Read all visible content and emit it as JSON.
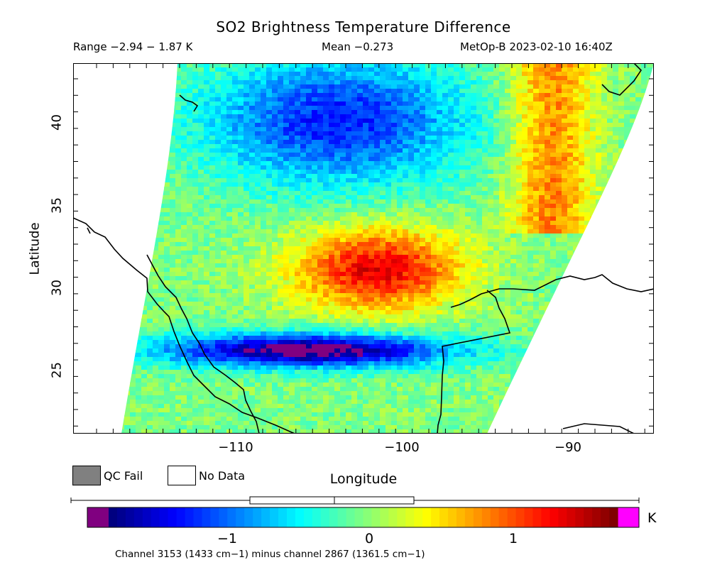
{
  "header": {
    "title": "SO2 Brightness Temperature Difference",
    "range": "Range −2.94 − 1.87 K",
    "mean": "Mean −0.273",
    "satellite": "MetOp-B 2023-02-10 16:40Z"
  },
  "axes": {
    "xlabel": "Longitude",
    "ylabel": "Latitude",
    "x_ticks": [
      "−110",
      "−100",
      "−90"
    ],
    "y_ticks": [
      "40",
      "35",
      "30",
      "25"
    ],
    "x_range": [
      -119.5,
      -84.5
    ],
    "y_range": [
      21,
      43.5
    ]
  },
  "legend": {
    "qc_fail": "QC Fail",
    "no_data": "No Data",
    "qc_color": "#808080"
  },
  "colorbar": {
    "ticks": [
      "−1",
      "0",
      "1"
    ],
    "unit": "K",
    "range": [
      -2.94,
      1.87
    ],
    "under_color": "#800080",
    "over_color": "#ff00ff"
  },
  "footnote": "Channel 3153 (1433 cm−1) minus channel 2867 (1361.5 cm−1)"
}
